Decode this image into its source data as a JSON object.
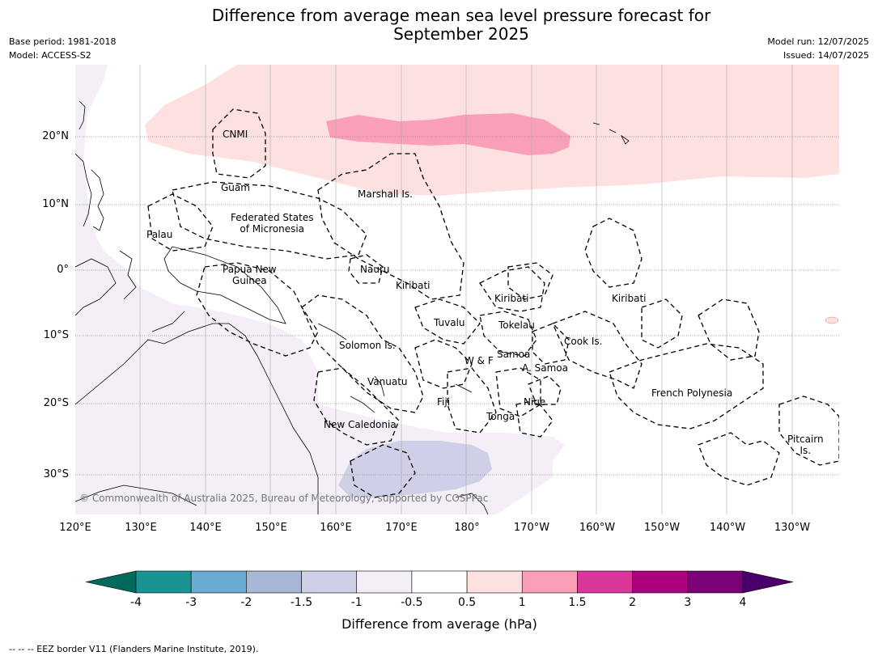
{
  "title": {
    "line1": "Difference from average mean sea level pressure forecast for",
    "line2": "September 2025"
  },
  "meta_left": {
    "base_period": "Base period: 1981-2018",
    "model": "Model: ACCESS-S2"
  },
  "meta_right": {
    "model_run": "Model run: 12/07/2025",
    "issued": "Issued: 14/07/2025"
  },
  "lat_labels": [
    "20°N",
    "10°N",
    "0°",
    "10°S",
    "20°S",
    "30°S"
  ],
  "lon_labels": [
    "120°E",
    "130°E",
    "140°E",
    "150°E",
    "160°E",
    "170°E",
    "180°",
    "170°W",
    "160°W",
    "150°W",
    "140°W",
    "130°W"
  ],
  "places": {
    "cnmi": "CNMI",
    "guam": "Guam",
    "marshall": "Marshall Is.",
    "palau": "Palau",
    "fsm_1": "Federated States",
    "fsm_2": "of Micronesia",
    "png_1": "Papua New",
    "png_2": "Guinea",
    "nauru": "Nauru",
    "kiribati_w": "Kiribati",
    "kiribati_c": "Kiribati",
    "kiribati_e": "Kiribati",
    "tuvalu": "Tuvalu",
    "tokelau": "Tokelau",
    "cook": "Cook Is.",
    "solomon": "Solomon Is.",
    "samoa": "Samoa",
    "wf": "W & F",
    "asamoa": "A. Samoa",
    "vanuatu": "Vanuatu",
    "fiji": "Fiji",
    "niue": "Niue",
    "tonga": "Tonga",
    "frpoly": "French Polynesia",
    "newcal": "New Caledonia",
    "pitcairn_1": "Pitcairn",
    "pitcairn_2": "Is."
  },
  "copyright": "© Commonwealth of Australia 2025, Bureau of Meteorology, supported by COSPPac",
  "colorbar": {
    "title": "Difference from average (hPa)",
    "ticks": [
      "-4",
      "-3",
      "-2",
      "-1.5",
      "-1",
      "-0.5",
      "0.5",
      "1",
      "1.5",
      "2",
      "3",
      "4"
    ],
    "colors": {
      "below_min": "#006a5c",
      "bins": [
        "#1a9395",
        "#6aabd4",
        "#a7b7d6",
        "#cfd0e7",
        "#f4eef6",
        "#ffffff",
        "#fde0e0",
        "#f9a0b8",
        "#d9379c",
        "#ae017e",
        "#7a0177"
      ],
      "above_max": "#4a006a"
    }
  },
  "footer": "--  --  -- EEZ border V11 (Flanders Marine Institute, 2019)."
}
